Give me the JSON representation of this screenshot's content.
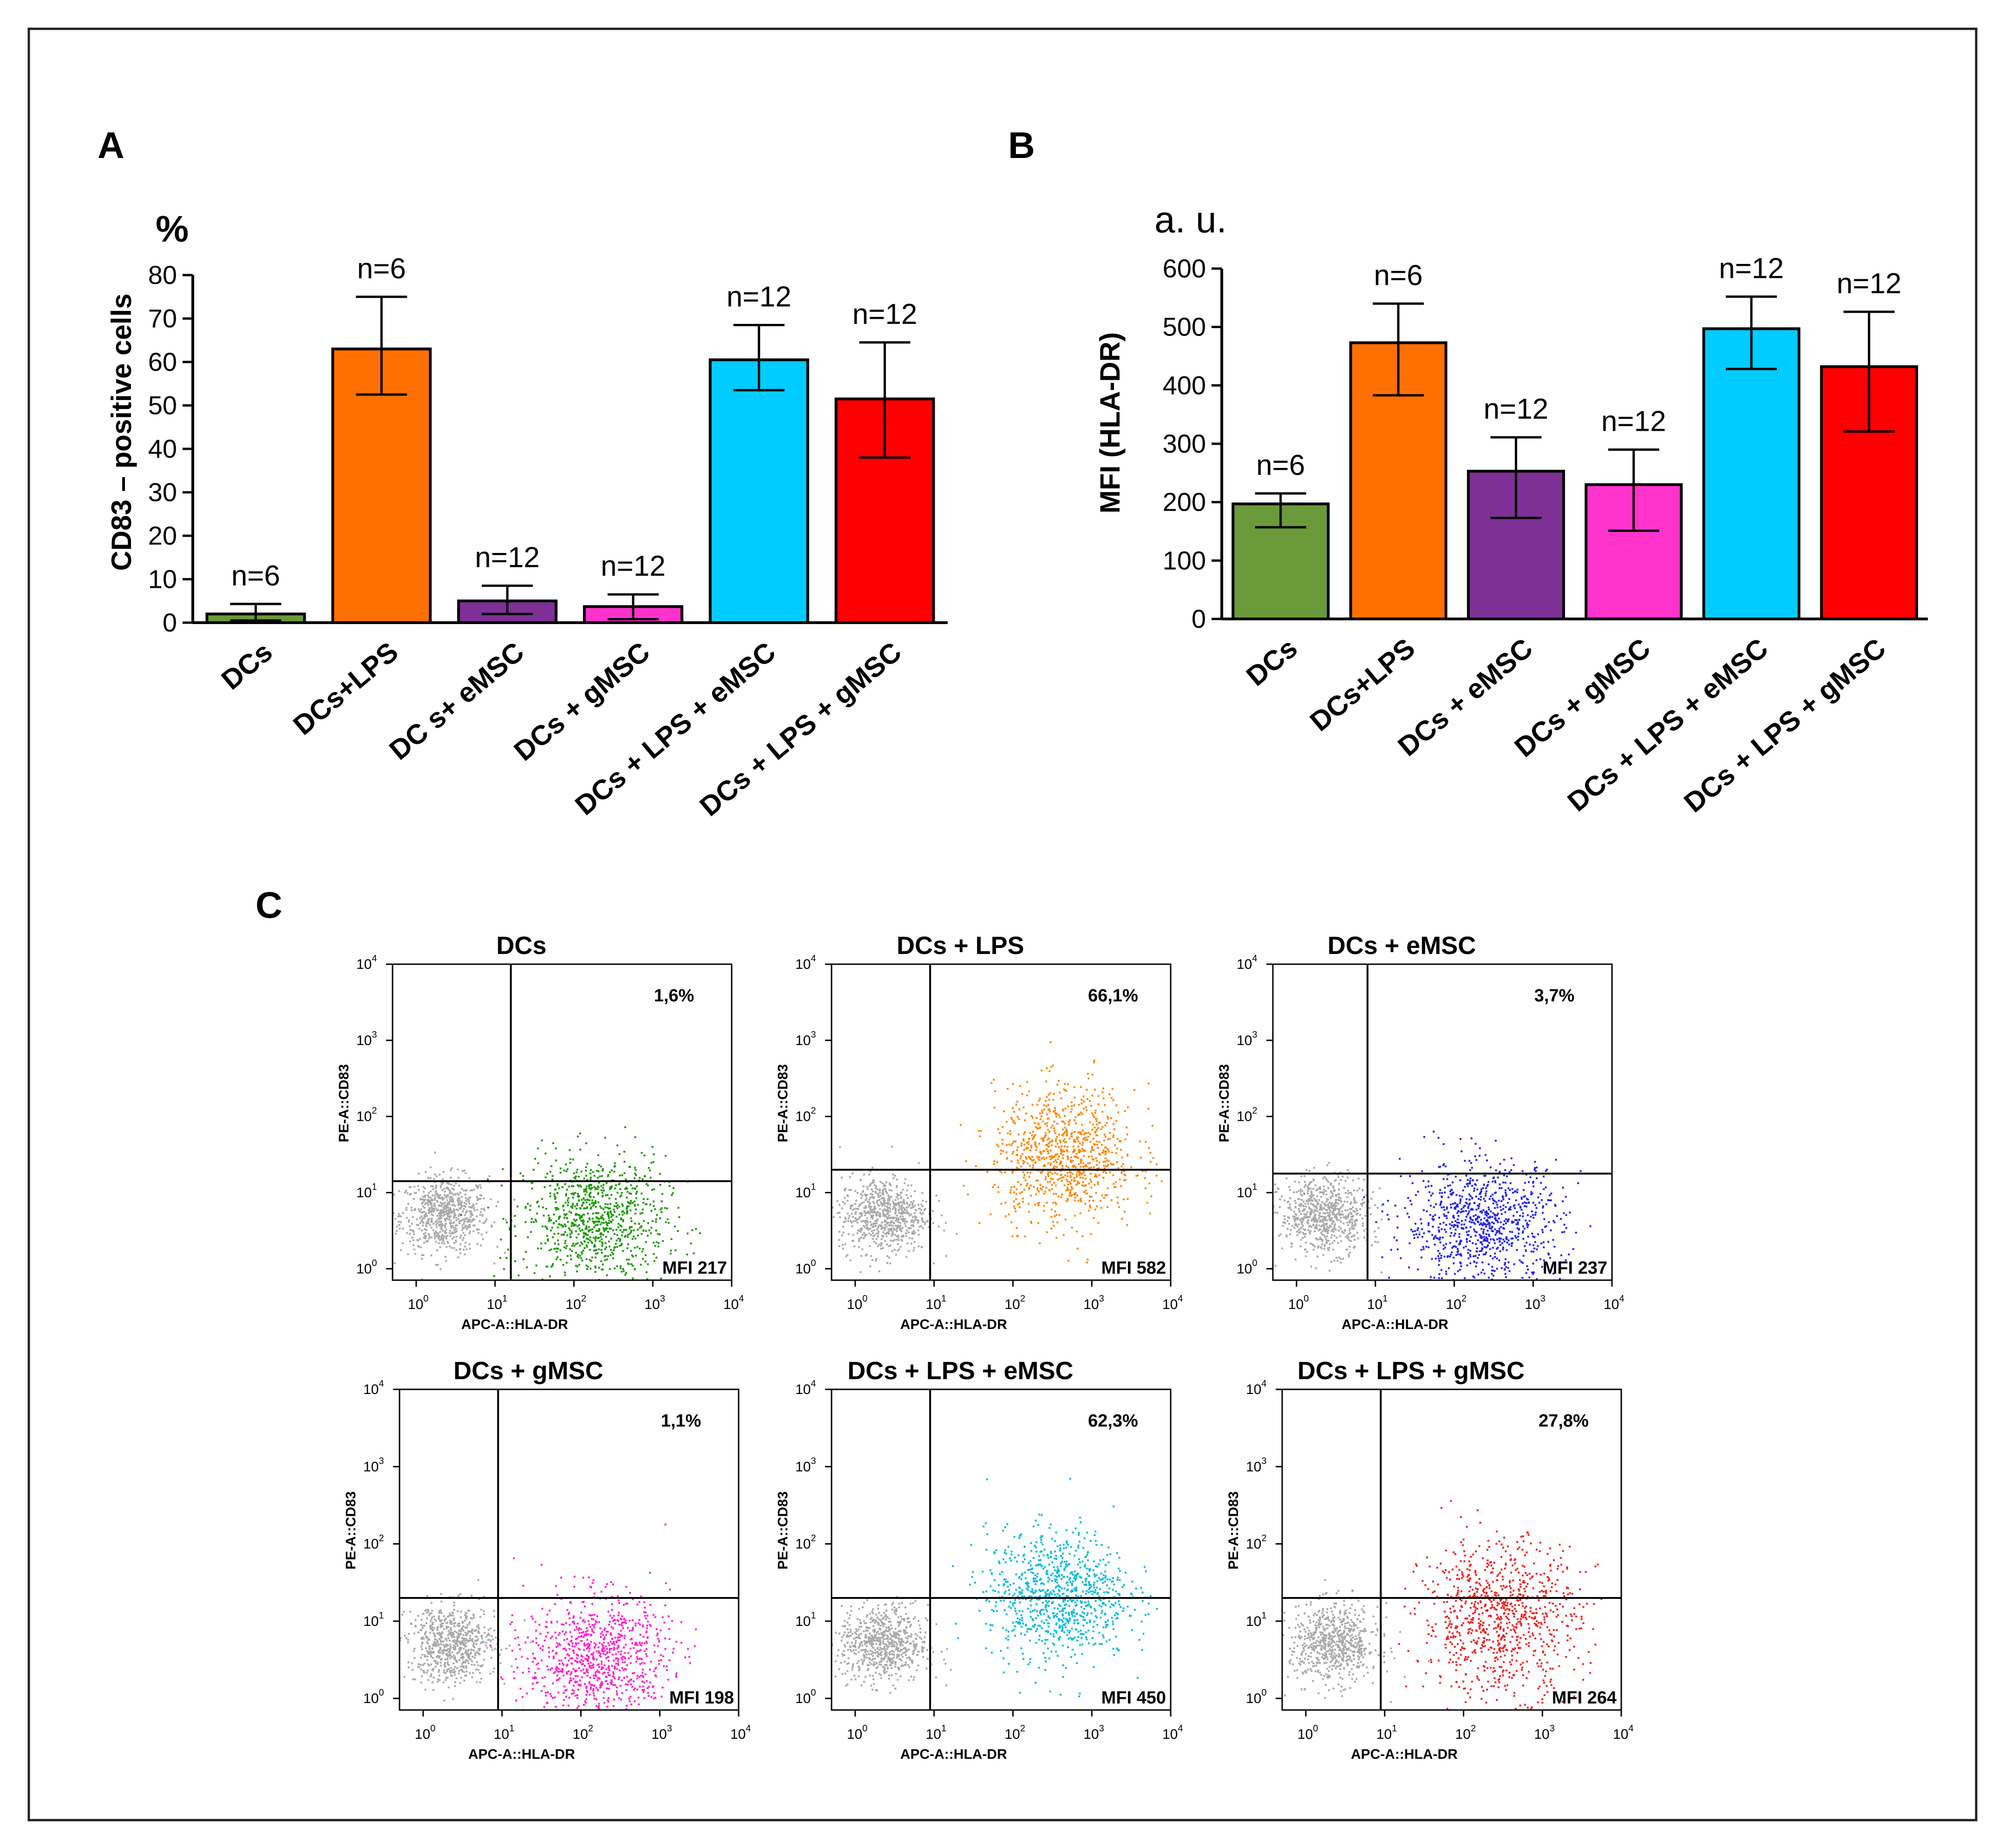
{
  "chart_data": [
    {
      "panel": "A",
      "type": "bar",
      "unit_label": "%",
      "ylabel": "CD83 – positive cells",
      "ylim": [
        0,
        80
      ],
      "yticks": [
        0,
        10,
        20,
        30,
        40,
        50,
        60,
        70,
        80
      ],
      "categories": [
        "DCs",
        "DCs+LPS",
        "DC s+ eMSC",
        "DCs + gMSC",
        "DCs + LPS + eMSC",
        "DCs + LPS + gMSC"
      ],
      "values": [
        2,
        63,
        5,
        3.7,
        60.5,
        51.5
      ],
      "err_low": [
        0.5,
        52.5,
        2,
        0.8,
        53.5,
        38
      ],
      "err_high": [
        4.3,
        75,
        8.5,
        6.5,
        68.5,
        64.5
      ],
      "n_labels": [
        "n=6",
        "n=6",
        "n=12",
        "n=12",
        "n=12",
        "n=12"
      ],
      "colors": [
        "#6a9a3a",
        "#ff7000",
        "#7e3096",
        "#ff33cc",
        "#00ccff",
        "#ff0000"
      ]
    },
    {
      "panel": "B",
      "type": "bar",
      "unit_label": "a. u.",
      "ylabel": "MFI  (HLA-DR)",
      "ylim": [
        0,
        600
      ],
      "yticks": [
        0,
        100,
        200,
        300,
        400,
        500,
        600
      ],
      "categories": [
        "DCs",
        "DCs+LPS",
        "DCs + eMSC",
        "DCs + gMSC",
        "DCs + LPS + eMSC",
        "DCs + LPS + gMSC"
      ],
      "values": [
        197,
        473,
        253,
        230,
        497,
        432
      ],
      "err_low": [
        157,
        383,
        173,
        151,
        428,
        321
      ],
      "err_high": [
        215,
        540,
        311,
        290,
        552,
        526
      ],
      "n_labels": [
        "n=6",
        "n=6",
        "n=12",
        "n=12",
        "n=12",
        "n=12"
      ],
      "colors": [
        "#6a9a3a",
        "#ff7000",
        "#7e3096",
        "#ff33cc",
        "#00ccff",
        "#ff0000"
      ]
    },
    {
      "panel": "C",
      "type": "scatter",
      "xlabel": "APC-A::HLA-DR",
      "ylabel": "PE-A::CD83",
      "tick_base": "10",
      "tick_exponents": [
        "0",
        "1",
        "2",
        "3",
        "4"
      ],
      "plots": [
        {
          "title": "DCs",
          "percent": "1,6%",
          "mfi": "MFI 217",
          "color": "#1a9a00",
          "gate_x": 1.2,
          "gate_y": 1.15,
          "pos_x": 2.25,
          "pos_y": 0.65,
          "spread_x": 0.45,
          "spread_y": 0.42,
          "pos_count": 900
        },
        {
          "title": "DCs + LPS",
          "percent": "66,1%",
          "mfi": "MFI 582",
          "color": "#ff8800",
          "gate_x": 0.95,
          "gate_y": 1.3,
          "pos_x": 2.65,
          "pos_y": 1.5,
          "spread_x": 0.45,
          "spread_y": 0.45,
          "pos_count": 900
        },
        {
          "title": "DCs + eMSC",
          "percent": "3,7%",
          "mfi": "MFI 237",
          "color": "#2222ee",
          "gate_x": 0.9,
          "gate_y": 1.25,
          "pos_x": 2.35,
          "pos_y": 0.6,
          "spread_x": 0.5,
          "spread_y": 0.4,
          "pos_count": 900
        },
        {
          "title": "DCs + gMSC",
          "percent": "1,1%",
          "mfi": "MFI 198",
          "color": "#ff22cc",
          "gate_x": 0.95,
          "gate_y": 1.3,
          "pos_x": 2.2,
          "pos_y": 0.55,
          "spread_x": 0.45,
          "spread_y": 0.4,
          "pos_count": 900
        },
        {
          "title": "DCs + LPS + eMSC",
          "percent": "62,3%",
          "mfi": "MFI 450",
          "color": "#00bbdd",
          "gate_x": 0.95,
          "gate_y": 1.3,
          "pos_x": 2.55,
          "pos_y": 1.35,
          "spread_x": 0.45,
          "spread_y": 0.42,
          "pos_count": 900
        },
        {
          "title": "DCs + LPS + gMSC",
          "percent": "27,8%",
          "mfi": "MFI 264",
          "color": "#ee2222",
          "gate_x": 0.95,
          "gate_y": 1.3,
          "pos_x": 2.45,
          "pos_y": 1.05,
          "spread_x": 0.5,
          "spread_y": 0.5,
          "pos_count": 900
        }
      ]
    }
  ]
}
